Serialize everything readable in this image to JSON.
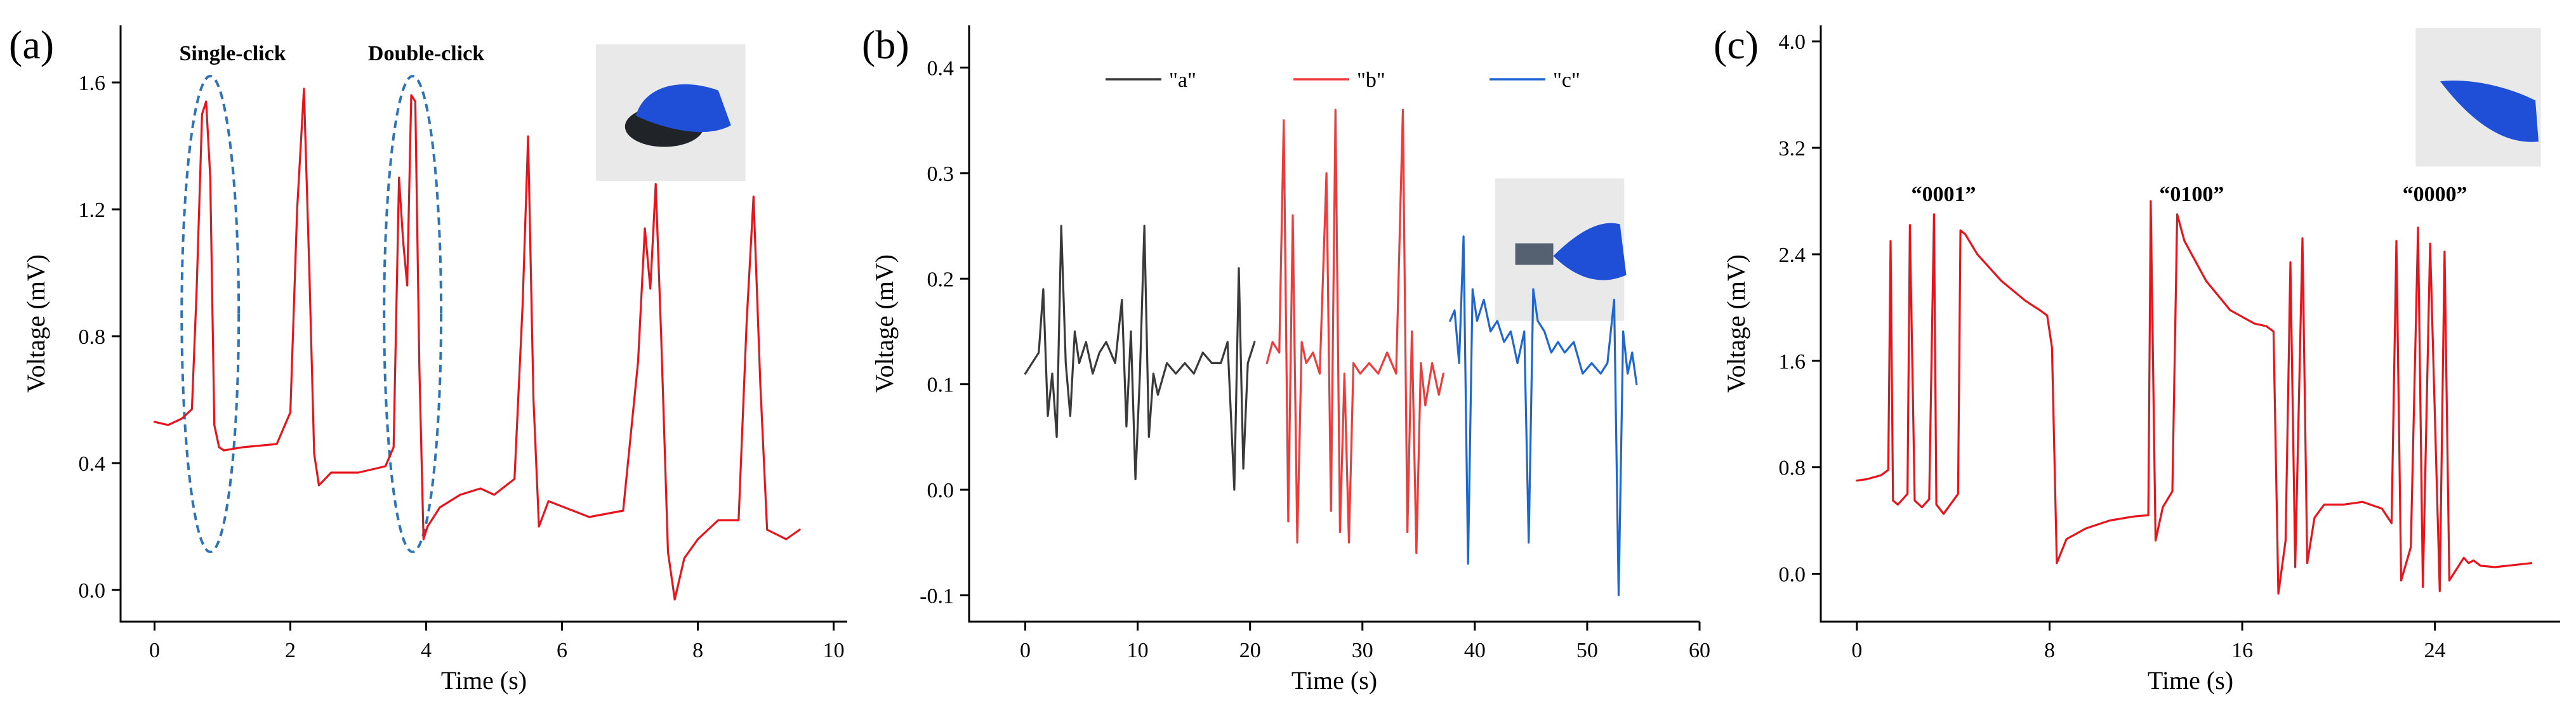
{
  "chart_data": [
    {
      "panel_label": "(a)",
      "type": "line",
      "xlabel": "Time (s)",
      "ylabel": "Voltage (mV)",
      "xlim": [
        -0.5,
        10.2
      ],
      "ylim": [
        -0.1,
        1.78
      ],
      "xticks": [
        0,
        2,
        4,
        6,
        8,
        10
      ],
      "yticks": [
        0.0,
        0.4,
        0.8,
        1.2,
        1.6
      ],
      "ytick_labels": [
        "0.0",
        "0.4",
        "0.8",
        "1.2",
        "1.6"
      ],
      "annotations": [
        {
          "text": "Single-click",
          "x": 1.15,
          "y": 1.67
        },
        {
          "text": "Double-click",
          "x": 4.0,
          "y": 1.67
        }
      ],
      "highlights": [
        {
          "shape": "ellipse",
          "cx": 0.82,
          "cy": 0.87,
          "rx": 0.42,
          "ry": 0.75
        },
        {
          "shape": "ellipse",
          "cx": 3.8,
          "cy": 0.87,
          "rx": 0.42,
          "ry": 0.75
        }
      ],
      "photo": {
        "icon": "hand-on-mouse-photo",
        "x0": 6.5,
        "x1": 8.7,
        "y0": 1.29,
        "y1": 1.72
      },
      "series": [
        {
          "name": "voltage",
          "color": "#e8141c",
          "x": [
            0.0,
            0.2,
            0.4,
            0.55,
            0.62,
            0.7,
            0.76,
            0.82,
            0.88,
            0.95,
            1.02,
            1.3,
            1.8,
            2.0,
            2.1,
            2.2,
            2.28,
            2.35,
            2.42,
            2.6,
            3.0,
            3.4,
            3.52,
            3.6,
            3.66,
            3.72,
            3.78,
            3.84,
            3.9,
            3.96,
            4.02,
            4.2,
            4.5,
            4.8,
            5.0,
            5.3,
            5.42,
            5.5,
            5.58,
            5.66,
            5.8,
            6.4,
            6.9,
            7.12,
            7.22,
            7.3,
            7.38,
            7.46,
            7.56,
            7.66,
            7.8,
            8.0,
            8.3,
            8.6,
            8.72,
            8.82,
            8.92,
            9.02,
            9.3,
            9.5
          ],
          "y": [
            0.53,
            0.52,
            0.54,
            0.57,
            0.95,
            1.5,
            1.54,
            1.3,
            0.52,
            0.45,
            0.44,
            0.45,
            0.46,
            0.56,
            1.2,
            1.58,
            1.0,
            0.43,
            0.33,
            0.37,
            0.37,
            0.39,
            0.45,
            1.3,
            1.1,
            0.96,
            1.56,
            1.54,
            0.7,
            0.16,
            0.2,
            0.26,
            0.3,
            0.32,
            0.3,
            0.35,
            0.9,
            1.43,
            0.6,
            0.2,
            0.28,
            0.23,
            0.25,
            0.72,
            1.14,
            0.95,
            1.28,
            0.8,
            0.12,
            -0.03,
            0.1,
            0.16,
            0.22,
            0.22,
            0.85,
            1.24,
            0.65,
            0.19,
            0.16,
            0.19
          ]
        }
      ]
    },
    {
      "panel_label": "(b)",
      "type": "line",
      "xlabel": "Time (s)",
      "ylabel": "Voltage (mV)",
      "xlim": [
        -5,
        60
      ],
      "ylim": [
        -0.125,
        0.44
      ],
      "xticks": [
        0,
        10,
        20,
        30,
        40,
        50,
        60
      ],
      "yticks": [
        -0.1,
        0.0,
        0.1,
        0.2,
        0.3,
        0.4
      ],
      "ytick_labels": [
        "-0.1",
        "0.0",
        "0.1",
        "0.2",
        "0.3",
        "0.4"
      ],
      "legend": [
        {
          "label": "\"a\"",
          "color": "#3a3a3a"
        },
        {
          "label": "\"b\"",
          "color": "#ee3b3b"
        },
        {
          "label": "\"c\"",
          "color": "#1f66d1"
        }
      ],
      "photo": {
        "icon": "hand-holding-sensor-photo",
        "x0": 41.8,
        "x1": 53.3,
        "y0": 0.16,
        "y1": 0.295
      },
      "series": [
        {
          "name": "\"a\"",
          "color": "#3a3a3a",
          "x": [
            0.0,
            0.6,
            1.2,
            1.6,
            2.0,
            2.4,
            2.8,
            3.2,
            3.6,
            4.0,
            4.4,
            4.8,
            5.4,
            6.0,
            6.6,
            7.2,
            8.0,
            8.6,
            9.0,
            9.4,
            9.8,
            10.2,
            10.6,
            11.0,
            11.4,
            11.8,
            12.6,
            13.4,
            14.2,
            15.0,
            15.8,
            16.6,
            17.4,
            18.0,
            18.6,
            19.0,
            19.4,
            19.8,
            20.4
          ],
          "y": [
            0.11,
            0.12,
            0.13,
            0.19,
            0.07,
            0.11,
            0.05,
            0.25,
            0.12,
            0.07,
            0.15,
            0.12,
            0.14,
            0.11,
            0.13,
            0.14,
            0.12,
            0.18,
            0.06,
            0.15,
            0.01,
            0.11,
            0.25,
            0.05,
            0.11,
            0.09,
            0.12,
            0.11,
            0.12,
            0.11,
            0.13,
            0.12,
            0.12,
            0.14,
            0.0,
            0.21,
            0.02,
            0.12,
            0.14
          ]
        },
        {
          "name": "\"b\"",
          "color": "#ee3b3b",
          "x": [
            21.5,
            22.0,
            22.6,
            23.0,
            23.4,
            23.8,
            24.2,
            24.6,
            25.0,
            25.6,
            26.2,
            26.8,
            27.2,
            27.6,
            28.0,
            28.4,
            28.8,
            29.2,
            29.8,
            30.6,
            31.4,
            32.2,
            33.0,
            33.6,
            34.0,
            34.4,
            34.8,
            35.2,
            35.6,
            36.2,
            36.8,
            37.2
          ],
          "y": [
            0.12,
            0.14,
            0.13,
            0.35,
            -0.03,
            0.26,
            -0.05,
            0.14,
            0.12,
            0.13,
            0.11,
            0.3,
            -0.02,
            0.36,
            -0.04,
            0.11,
            -0.05,
            0.12,
            0.11,
            0.12,
            0.11,
            0.13,
            0.11,
            0.36,
            -0.04,
            0.15,
            -0.06,
            0.12,
            0.08,
            0.12,
            0.09,
            0.11
          ]
        },
        {
          "name": "\"c\"",
          "color": "#1f66d1",
          "x": [
            37.8,
            38.2,
            38.6,
            39.0,
            39.4,
            39.8,
            40.2,
            40.8,
            41.4,
            42.0,
            42.6,
            43.2,
            43.8,
            44.4,
            44.8,
            45.2,
            45.6,
            46.2,
            46.8,
            47.4,
            48.0,
            48.8,
            49.6,
            50.4,
            51.2,
            51.8,
            52.4,
            52.8,
            53.2,
            53.6,
            54.0,
            54.4
          ],
          "y": [
            0.16,
            0.17,
            0.12,
            0.24,
            -0.07,
            0.19,
            0.16,
            0.18,
            0.15,
            0.16,
            0.14,
            0.15,
            0.12,
            0.15,
            -0.05,
            0.19,
            0.16,
            0.15,
            0.13,
            0.14,
            0.13,
            0.14,
            0.11,
            0.12,
            0.11,
            0.12,
            0.18,
            -0.1,
            0.15,
            0.11,
            0.13,
            0.1
          ]
        }
      ]
    },
    {
      "panel_label": "(c)",
      "type": "line",
      "xlabel": "Time (s)",
      "ylabel": "Voltage (mV)",
      "xlim": [
        -1.5,
        29.2
      ],
      "ylim": [
        -0.36,
        4.12
      ],
      "xticks": [
        0,
        8,
        16,
        24
      ],
      "yticks": [
        0.0,
        0.8,
        1.6,
        2.4,
        3.2,
        4.0
      ],
      "ytick_labels": [
        "0.0",
        "0.8",
        "1.6",
        "2.4",
        "3.2",
        "4.0"
      ],
      "annotations": [
        {
          "text": "“0001”",
          "x": 3.6,
          "y": 2.8
        },
        {
          "text": "“0100”",
          "x": 13.9,
          "y": 2.8
        },
        {
          "text": "“0000”",
          "x": 24.0,
          "y": 2.8
        }
      ],
      "photo": {
        "icon": "gloved-finger-photo",
        "x0": 23.2,
        "x1": 28.4,
        "y0": 3.06,
        "y1": 4.1
      },
      "series": [
        {
          "name": "voltage",
          "color": "#e8141c",
          "x": [
            0.0,
            0.4,
            1.0,
            1.3,
            1.4,
            1.5,
            1.7,
            2.1,
            2.2,
            2.4,
            2.7,
            3.0,
            3.2,
            3.3,
            3.6,
            4.2,
            4.3,
            4.5,
            5.0,
            6.0,
            7.0,
            7.6,
            7.9,
            8.1,
            8.3,
            8.7,
            9.5,
            10.5,
            11.5,
            12.1,
            12.2,
            12.4,
            12.7,
            13.1,
            13.3,
            13.6,
            14.5,
            15.5,
            16.5,
            17.0,
            17.3,
            17.5,
            17.8,
            18.0,
            18.2,
            18.5,
            18.7,
            19.0,
            19.4,
            20.2,
            21.0,
            21.8,
            22.2,
            22.4,
            22.6,
            23.0,
            23.3,
            23.5,
            23.8,
            24.2,
            24.4,
            24.6,
            25.2,
            25.4,
            25.6,
            25.9,
            26.5,
            27.5,
            28.0
          ],
          "y": [
            0.7,
            0.71,
            0.74,
            0.78,
            2.5,
            0.55,
            0.52,
            0.6,
            2.62,
            0.55,
            0.5,
            0.56,
            2.7,
            0.52,
            0.45,
            0.6,
            2.58,
            2.55,
            2.4,
            2.2,
            2.05,
            1.98,
            1.94,
            1.7,
            0.08,
            0.26,
            0.34,
            0.4,
            0.43,
            0.44,
            2.8,
            0.25,
            0.5,
            0.62,
            2.7,
            2.5,
            2.2,
            1.98,
            1.88,
            1.86,
            1.82,
            -0.15,
            0.25,
            2.34,
            0.05,
            2.52,
            0.08,
            0.42,
            0.52,
            0.52,
            0.54,
            0.49,
            0.38,
            2.5,
            -0.05,
            0.2,
            2.6,
            -0.1,
            2.48,
            -0.13,
            2.42,
            -0.05,
            0.12,
            0.08,
            0.1,
            0.06,
            0.05,
            0.07,
            0.08
          ]
        }
      ]
    }
  ]
}
